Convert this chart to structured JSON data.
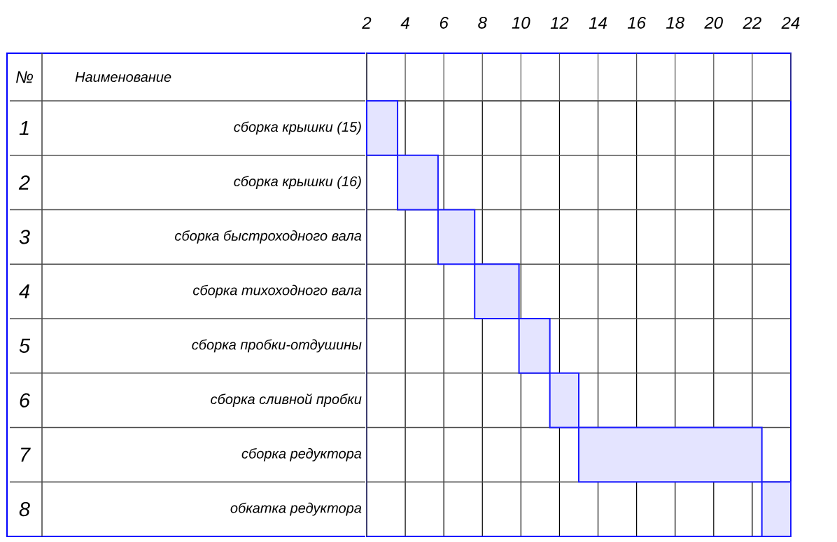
{
  "chart_data": {
    "type": "bar",
    "orientation": "horizontal",
    "categories": [
      "сборка крышки (15)",
      "сборка крышки (16)",
      "сборка быстроходного вала",
      "сборка тихоходного вала",
      "сборка пробки-отдушины",
      "сборка сливной пробки",
      "сборка редуктора",
      "обкатка редуктора"
    ],
    "base": [
      2.0,
      3.6,
      5.7,
      7.6,
      9.9,
      11.5,
      13.0,
      22.5
    ],
    "values": [
      1.6,
      2.1,
      1.9,
      2.3,
      1.6,
      1.5,
      9.5,
      1.5
    ],
    "color": "#1a1aff",
    "xlim": [
      2,
      24
    ],
    "xticks": [
      2,
      4,
      6,
      8,
      10,
      12,
      14,
      16,
      18,
      20,
      22,
      24
    ],
    "grid": "x",
    "annotations": [
      "№",
      "Наименование",
      "1",
      "2",
      "3",
      "4",
      "5",
      "6",
      "7",
      "8"
    ]
  }
}
